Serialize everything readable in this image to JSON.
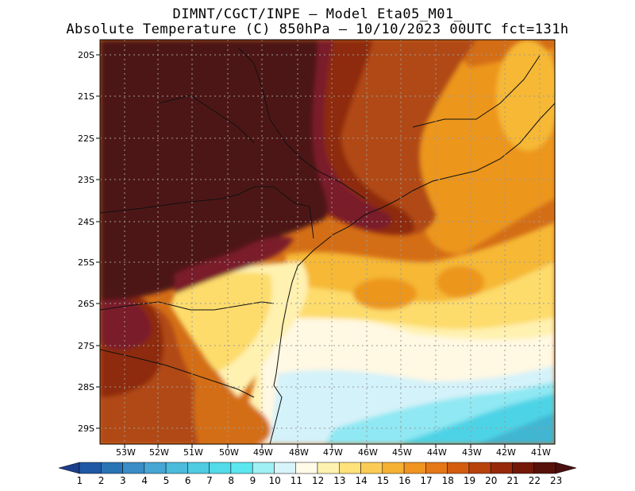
{
  "title_line1": "DIMNT/CGCT/INPE –  Model Eta05_M01_",
  "title_line2": "Absolute Temperature (C) 850hPa –  10/10/2023 00UTC fct=131h",
  "lat_labels": [
    "20S",
    "21S",
    "22S",
    "23S",
    "24S",
    "25S",
    "26S",
    "27S",
    "28S",
    "29S"
  ],
  "lon_labels": [
    "53W",
    "52W",
    "51W",
    "50W",
    "49W",
    "48W",
    "47W",
    "46W",
    "45W",
    "44W",
    "43W",
    "42W",
    "41W"
  ],
  "colorbar": {
    "labels": [
      "1",
      "2",
      "3",
      "4",
      "5",
      "6",
      "7",
      "8",
      "9",
      "10",
      "11",
      "12",
      "13",
      "14",
      "15",
      "16",
      "17",
      "18",
      "19",
      "20",
      "21",
      "22",
      "23"
    ],
    "colors": [
      "#1b3f8b",
      "#1f58a4",
      "#2a74b6",
      "#3a8dc6",
      "#46a6d4",
      "#4cbbdc",
      "#4fcbe2",
      "#52dbe9",
      "#5be7ef",
      "#9ff0f4",
      "#d6f4fa",
      "#fffbe8",
      "#fff2b0",
      "#ffe27a",
      "#fbcc55",
      "#f5b132",
      "#f09422",
      "#e67717",
      "#d25d10",
      "#b8420c",
      "#97290a",
      "#741807",
      "#56120a",
      "#4a0f10"
    ]
  },
  "legend_colors": {
    "deep_brown": "#4e1214",
    "wine": "#7a1a2a",
    "dark_red": "#8e2a10",
    "rust": "#b14a12",
    "orange": "#d46e16",
    "orange_light": "#ec961f",
    "gold": "#f6b836",
    "yellow": "#fddc6c",
    "pale_yellow": "#fff1b0",
    "cream": "#fff8e2",
    "ice": "#d4f2f9",
    "light_cyan": "#8fe8f3",
    "cyan": "#4ed3e6",
    "teal": "#3fb6d3"
  }
}
